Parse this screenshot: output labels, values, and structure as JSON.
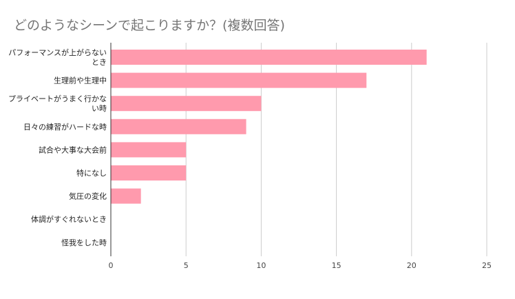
{
  "chart_data": {
    "type": "bar",
    "orientation": "horizontal",
    "title": "どのようなシーンで起こりますか？(複数回答)",
    "categories": [
      "パフォーマンスが上がらないとき",
      "生理前や生理中",
      "プライベートがうまく行かない時",
      "日々の練習がハードな時",
      "試合や大事な大会前",
      "特になし",
      "気圧の変化",
      "体調がすぐれないとき",
      "怪我をした時"
    ],
    "values": [
      21,
      17,
      10,
      9,
      5,
      5,
      2,
      0,
      0
    ],
    "xlim": [
      0,
      25
    ],
    "xticks": [
      0,
      5,
      10,
      15,
      20,
      25
    ],
    "grid": true,
    "legend": "none",
    "bar_color": "#FF9AAD",
    "grid_color": "#CCCCCC",
    "axis_color": "#333333"
  }
}
